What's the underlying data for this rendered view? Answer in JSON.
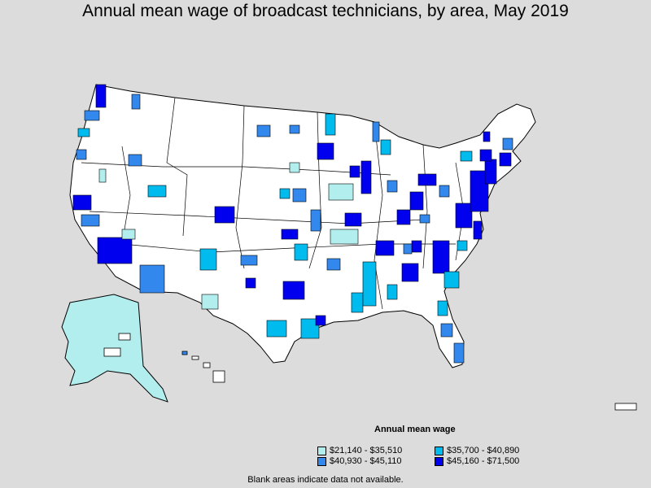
{
  "title": "Annual mean wage of broadcast technicians, by area, May 2019",
  "legend": {
    "title": "Annual mean wage",
    "items": [
      {
        "label": "$21,140 - $35,510",
        "color": "#b3eeee"
      },
      {
        "label": "$35,700 - $40,890",
        "color": "#00bbee"
      },
      {
        "label": "$40,930 - $45,110",
        "color": "#3388ee"
      },
      {
        "label": "$45,160 - $71,500",
        "color": "#0000ee"
      }
    ]
  },
  "note": "Blank areas indicate data not available.",
  "colors": {
    "background": "#dcdcdc",
    "land": "#ffffff",
    "border": "#000000"
  }
}
